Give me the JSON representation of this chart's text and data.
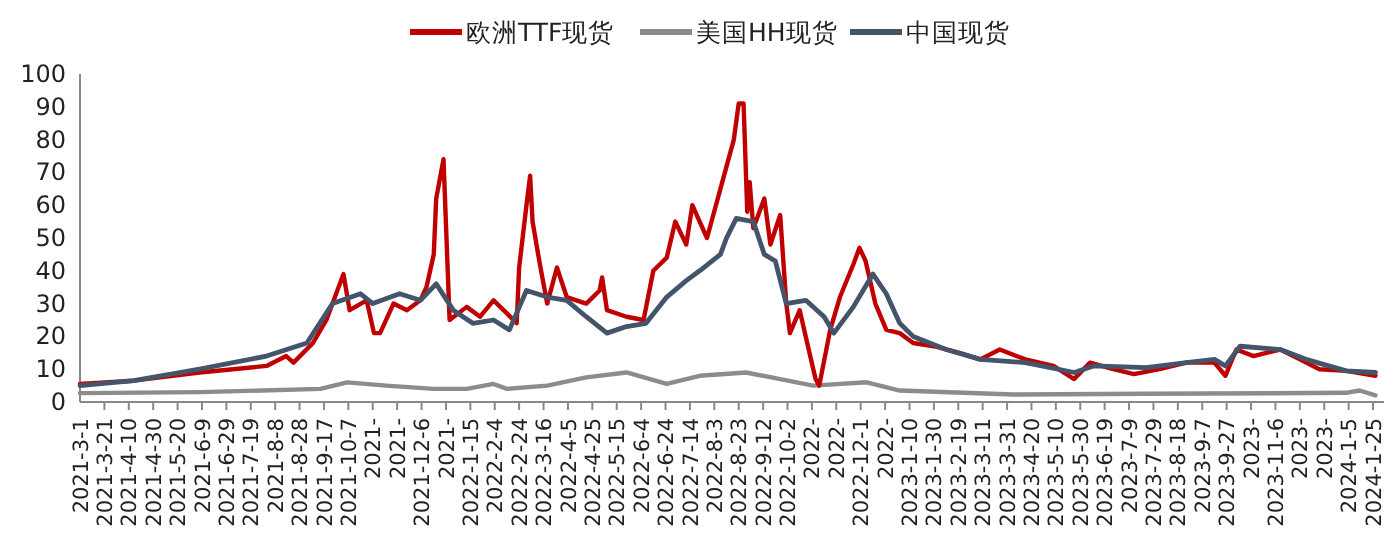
{
  "chart_data": {
    "type": "line",
    "legend": "top",
    "grid": false,
    "marker": "none",
    "line_style": "solid",
    "xlim": [
      "2021-03-01",
      "2024-02-03"
    ],
    "ylim": [
      0,
      100
    ],
    "yticks": [
      0,
      10,
      20,
      30,
      40,
      50,
      60,
      70,
      80,
      90,
      100
    ],
    "xticks": [
      {
        "value": "2021-03-01",
        "label": "2021-3-1"
      },
      {
        "value": "2021-03-21",
        "label": "2021-3-21"
      },
      {
        "value": "2021-04-10",
        "label": "2021-4-10"
      },
      {
        "value": "2021-04-30",
        "label": "2021-4-30"
      },
      {
        "value": "2021-05-20",
        "label": "2021-5-20"
      },
      {
        "value": "2021-06-09",
        "label": "2021-6-9"
      },
      {
        "value": "2021-06-29",
        "label": "2021-6-29"
      },
      {
        "value": "2021-07-19",
        "label": "2021-7-19"
      },
      {
        "value": "2021-08-08",
        "label": "2021-8-8"
      },
      {
        "value": "2021-08-28",
        "label": "2021-8-28"
      },
      {
        "value": "2021-09-17",
        "label": "2021-9-17"
      },
      {
        "value": "2021-10-07",
        "label": "2021-10-7"
      },
      {
        "value": "2021-10-27",
        "label": "2021-"
      },
      {
        "value": "2021-11-16",
        "label": "2021-"
      },
      {
        "value": "2021-12-06",
        "label": "2021-12-6"
      },
      {
        "value": "2021-12-26",
        "label": "2021-"
      },
      {
        "value": "2022-01-15",
        "label": "2022-1-15"
      },
      {
        "value": "2022-02-04",
        "label": "2022-2-4"
      },
      {
        "value": "2022-02-24",
        "label": "2022-2-24"
      },
      {
        "value": "2022-03-16",
        "label": "2022-3-16"
      },
      {
        "value": "2022-04-05",
        "label": "2022-4-5"
      },
      {
        "value": "2022-04-25",
        "label": "2022-4-25"
      },
      {
        "value": "2022-05-15",
        "label": "2022-5-15"
      },
      {
        "value": "2022-06-04",
        "label": "2022-6-4"
      },
      {
        "value": "2022-06-24",
        "label": "2022-6-24"
      },
      {
        "value": "2022-07-14",
        "label": "2022-7-14"
      },
      {
        "value": "2022-08-03",
        "label": "2022-8-3"
      },
      {
        "value": "2022-08-23",
        "label": "2022-8-23"
      },
      {
        "value": "2022-09-12",
        "label": "2022-9-12"
      },
      {
        "value": "2022-10-02",
        "label": "2022-10-2"
      },
      {
        "value": "2022-10-22",
        "label": "2022-"
      },
      {
        "value": "2022-11-11",
        "label": "2022-"
      },
      {
        "value": "2022-12-01",
        "label": "2022-12-1"
      },
      {
        "value": "2022-12-21",
        "label": "2022-"
      },
      {
        "value": "2023-01-10",
        "label": "2023-1-10"
      },
      {
        "value": "2023-01-30",
        "label": "2023-1-30"
      },
      {
        "value": "2023-02-19",
        "label": "2023-2-19"
      },
      {
        "value": "2023-03-11",
        "label": "2023-3-11"
      },
      {
        "value": "2023-03-31",
        "label": "2023-3-31"
      },
      {
        "value": "2023-04-20",
        "label": "2023-4-20"
      },
      {
        "value": "2023-05-10",
        "label": "2023-5-10"
      },
      {
        "value": "2023-05-30",
        "label": "2023-5-30"
      },
      {
        "value": "2023-06-19",
        "label": "2023-6-19"
      },
      {
        "value": "2023-07-09",
        "label": "2023-7-9"
      },
      {
        "value": "2023-07-29",
        "label": "2023-7-29"
      },
      {
        "value": "2023-08-18",
        "label": "2023-8-18"
      },
      {
        "value": "2023-09-07",
        "label": "2023-9-7"
      },
      {
        "value": "2023-09-27",
        "label": "2023-9-27"
      },
      {
        "value": "2023-10-17",
        "label": "2023-"
      },
      {
        "value": "2023-11-06",
        "label": "2023-11-6"
      },
      {
        "value": "2023-11-26",
        "label": "2023-"
      },
      {
        "value": "2023-12-16",
        "label": "2023-"
      },
      {
        "value": "2024-01-05",
        "label": "2024-1-5"
      },
      {
        "value": "2024-01-25",
        "label": "2024-1-25"
      }
    ],
    "series": [
      {
        "name": "欧洲TTF现货",
        "color": "#c00000",
        "x": [
          "2021-03-01",
          "2021-04-14",
          "2021-06-07",
          "2021-08-01",
          "2021-08-17",
          "2021-08-23",
          "2021-09-08",
          "2021-09-19",
          "2021-10-03",
          "2021-10-08",
          "2021-10-22",
          "2021-10-28",
          "2021-11-02",
          "2021-11-13",
          "2021-11-24",
          "2021-12-05",
          "2021-12-10",
          "2021-12-16",
          "2021-12-18",
          "2021-12-24",
          "2021-12-29",
          "2022-01-12",
          "2022-01-23",
          "2022-02-03",
          "2022-02-14",
          "2022-02-22",
          "2022-02-24",
          "2022-03-02",
          "2022-03-05",
          "2022-03-07",
          "2022-03-13",
          "2022-03-19",
          "2022-03-27",
          "2022-04-04",
          "2022-04-20",
          "2022-05-01",
          "2022-05-03",
          "2022-05-07",
          "2022-05-23",
          "2022-06-06",
          "2022-06-14",
          "2022-06-25",
          "2022-07-02",
          "2022-07-11",
          "2022-07-16",
          "2022-07-22",
          "2022-07-28",
          "2022-08-08",
          "2022-08-19",
          "2022-08-23",
          "2022-08-27",
          "2022-08-30",
          "2022-09-01",
          "2022-09-04",
          "2022-09-13",
          "2022-09-18",
          "2022-09-26",
          "2022-10-01",
          "2022-10-04",
          "2022-10-12",
          "2022-10-20",
          "2022-10-25",
          "2022-10-28",
          "2022-11-06",
          "2022-11-14",
          "2022-11-25",
          "2022-11-30",
          "2022-12-05",
          "2022-12-13",
          "2022-12-22",
          "2023-01-02",
          "2023-01-13",
          "2023-01-30",
          "2023-02-20",
          "2023-03-09",
          "2023-03-25",
          "2023-04-15",
          "2023-05-08",
          "2023-05-25",
          "2023-06-07",
          "2023-06-26",
          "2023-07-13",
          "2023-08-03",
          "2023-08-25",
          "2023-09-17",
          "2023-09-26",
          "2023-10-05",
          "2023-10-19",
          "2023-11-10",
          "2023-11-26",
          "2023-12-12",
          "2024-01-03",
          "2024-01-27"
        ],
        "values": [
          5.5,
          6.5,
          9,
          11,
          14,
          12,
          18,
          25,
          39,
          28,
          31,
          21,
          21,
          30,
          28,
          31,
          35,
          45,
          62,
          74,
          25,
          29,
          26,
          31,
          27,
          24,
          41,
          60,
          69,
          55,
          42,
          30,
          41,
          32,
          30,
          34,
          38,
          28,
          26,
          25,
          40,
          44,
          55,
          48,
          60,
          55,
          50,
          65,
          80,
          91,
          91,
          58,
          67,
          53,
          62,
          48,
          57,
          30,
          21,
          28,
          15,
          7,
          5,
          22,
          32,
          42,
          47,
          43,
          30,
          22,
          21,
          18,
          17,
          15,
          13,
          16,
          13,
          11,
          7,
          12,
          10,
          8.5,
          10,
          12,
          12,
          8,
          16,
          14,
          16,
          13,
          10,
          9.5,
          8
        ]
      },
      {
        "name": "美国HH现货",
        "color": "#8c8c8c",
        "x": [
          "2021-03-01",
          "2021-06-07",
          "2021-09-14",
          "2021-10-06",
          "2021-11-07",
          "2021-12-16",
          "2022-01-12",
          "2022-02-03",
          "2022-02-14",
          "2022-03-19",
          "2022-04-20",
          "2022-05-23",
          "2022-06-25",
          "2022-07-22",
          "2022-08-29",
          "2022-09-26",
          "2022-10-23",
          "2022-12-06",
          "2023-01-02",
          "2023-04-05",
          "2023-07-23",
          "2024-01-03",
          "2024-01-14",
          "2024-01-27"
        ],
        "values": [
          2.7,
          3,
          4,
          6,
          5,
          4,
          4,
          5.5,
          4,
          5,
          7.5,
          9,
          5.5,
          8,
          9,
          7,
          5,
          6,
          3.5,
          2.3,
          2.5,
          2.8,
          3.5,
          2
        ]
      },
      {
        "name": "中国现货",
        "color": "#44546a",
        "x": [
          "2021-03-01",
          "2021-04-14",
          "2021-06-07",
          "2021-08-01",
          "2021-09-03",
          "2021-09-24",
          "2021-10-17",
          "2021-10-27",
          "2021-11-18",
          "2021-12-05",
          "2021-12-18",
          "2022-01-01",
          "2022-01-17",
          "2022-02-03",
          "2022-02-16",
          "2022-03-02",
          "2022-03-19",
          "2022-04-04",
          "2022-04-20",
          "2022-05-07",
          "2022-05-23",
          "2022-06-08",
          "2022-06-25",
          "2022-07-11",
          "2022-07-22",
          "2022-08-08",
          "2022-08-13",
          "2022-08-21",
          "2022-09-04",
          "2022-09-13",
          "2022-09-22",
          "2022-10-01",
          "2022-10-17",
          "2022-11-01",
          "2022-11-09",
          "2022-11-25",
          "2022-12-11",
          "2022-12-22",
          "2023-01-02",
          "2023-01-13",
          "2023-02-09",
          "2023-03-09",
          "2023-04-15",
          "2023-05-25",
          "2023-06-10",
          "2023-07-23",
          "2023-08-25",
          "2023-09-17",
          "2023-09-26",
          "2023-10-08",
          "2023-11-10",
          "2023-12-01",
          "2024-01-03",
          "2024-01-27"
        ],
        "values": [
          5,
          6.5,
          10,
          14,
          18,
          30,
          33,
          30,
          33,
          31,
          36,
          28,
          24,
          25,
          22,
          34,
          32,
          31,
          26,
          21,
          23,
          24,
          32,
          37,
          40,
          45,
          50,
          56,
          55,
          45,
          43,
          30,
          31,
          26,
          21,
          29,
          39,
          33,
          24,
          20,
          16,
          13,
          12,
          9,
          11,
          10.5,
          12,
          13,
          11,
          17,
          16,
          13,
          9.5,
          9
        ]
      }
    ]
  }
}
